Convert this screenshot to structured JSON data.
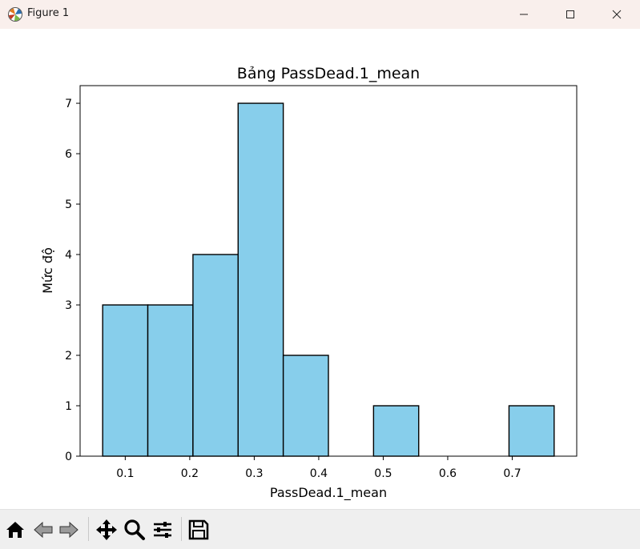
{
  "window": {
    "title": "Figure 1"
  },
  "toolbar": {
    "tools": [
      "home-icon",
      "back-icon",
      "forward-icon",
      "pan-icon",
      "zoom-icon",
      "configure-subplots-icon",
      "save-icon"
    ]
  },
  "chart_data": {
    "type": "bar",
    "title": "Bảng PassDead.1_mean",
    "xlabel": "PassDead.1_mean",
    "ylabel": "Mức độ",
    "bin_edges": [
      0.065,
      0.135,
      0.205,
      0.275,
      0.345,
      0.415,
      0.485,
      0.555,
      0.625,
      0.695,
      0.765
    ],
    "values": [
      3,
      3,
      4,
      7,
      2,
      0,
      1,
      0,
      0,
      1
    ],
    "xlim": [
      0.03,
      0.8
    ],
    "ylim": [
      0,
      7.35
    ],
    "xticks": [
      0.1,
      0.2,
      0.3,
      0.4,
      0.5,
      0.6,
      0.7
    ],
    "xtick_labels": [
      "0.1",
      "0.2",
      "0.3",
      "0.4",
      "0.5",
      "0.6",
      "0.7"
    ],
    "yticks": [
      0,
      1,
      2,
      3,
      4,
      5,
      6,
      7
    ],
    "ytick_labels": [
      "0",
      "1",
      "2",
      "3",
      "4",
      "5",
      "6",
      "7"
    ],
    "bar_color": "#87ceeb",
    "edge_color": "#000000",
    "grid": false
  }
}
